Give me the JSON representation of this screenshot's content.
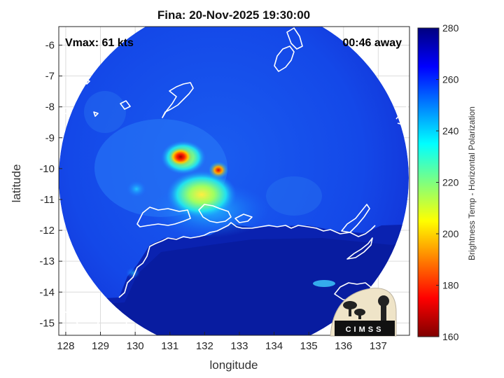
{
  "title": "Fina: 20-Nov-2025 19:30:00",
  "annotations": {
    "vmax": "Vmax: 61 kts",
    "time_away": "00:46 away"
  },
  "axes": {
    "xlabel": "longitude",
    "ylabel": "latitude",
    "x_ticks": [
      128,
      129,
      130,
      131,
      132,
      133,
      134,
      135,
      136,
      137
    ],
    "y_ticks": [
      -6,
      -7,
      -8,
      -9,
      -10,
      -11,
      -12,
      -13,
      -14,
      -15
    ],
    "xlim": [
      127.8,
      137.9
    ],
    "ylim": [
      -15.4,
      -5.4
    ]
  },
  "colorbar": {
    "label": "Brightness Temp - Horizontal Polarization",
    "ticks": [
      160,
      180,
      200,
      220,
      240,
      260,
      280
    ],
    "range": [
      160,
      280
    ],
    "colormap": "jet",
    "colors": [
      "#7f0000",
      "#ff0000",
      "#ffff00",
      "#00ffff",
      "#0000ff",
      "#00007f"
    ]
  },
  "swath": {
    "shape": "circle",
    "center_lon": 132.85,
    "center_lat": -10.0,
    "background_temp_k": 265,
    "land_temp_k": 280,
    "features": [
      {
        "name": "eyewall-max-west",
        "lon": 131.3,
        "lat": -9.6,
        "temp_k": 185
      },
      {
        "name": "eyewall-max-east",
        "lon": 132.5,
        "lat": -10.0,
        "temp_k": 195
      },
      {
        "name": "rainband-south",
        "lon": 132.2,
        "lat": -11.1,
        "temp_k": 215
      }
    ]
  },
  "logo": {
    "text": "CIMSS"
  }
}
